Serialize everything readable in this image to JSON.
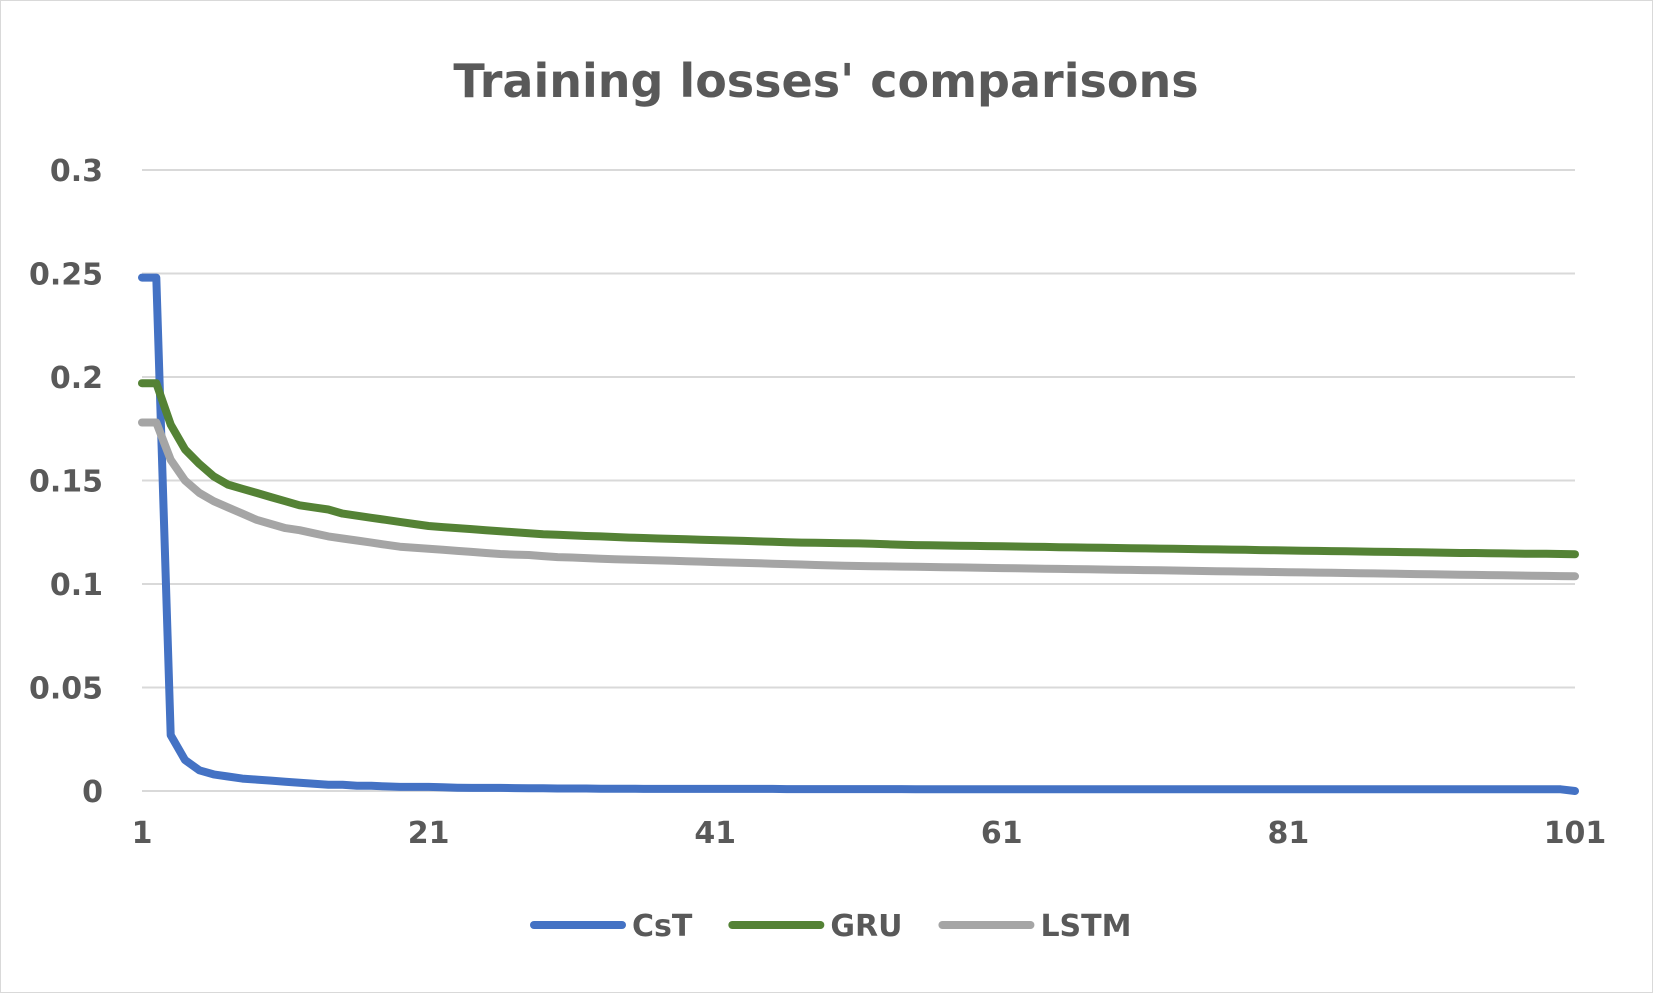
{
  "chart_data": {
    "type": "line",
    "title": "Training losses' comparisons",
    "xlabel": "",
    "ylabel": "",
    "xlim": [
      1,
      101
    ],
    "ylim": [
      0,
      0.3
    ],
    "x_ticks": [
      "1",
      "21",
      "41",
      "61",
      "81",
      "101"
    ],
    "y_ticks": [
      "0",
      "0.05",
      "0.1",
      "0.15",
      "0.2",
      "0.25",
      "0.3"
    ],
    "grid": true,
    "legend_position": "bottom",
    "x": [
      1,
      2,
      3,
      4,
      5,
      6,
      7,
      8,
      9,
      10,
      11,
      12,
      13,
      14,
      15,
      16,
      17,
      18,
      19,
      20,
      21,
      22,
      23,
      24,
      25,
      26,
      27,
      28,
      29,
      30,
      31,
      32,
      33,
      34,
      35,
      36,
      37,
      38,
      39,
      40,
      41,
      42,
      43,
      44,
      45,
      46,
      47,
      48,
      49,
      50,
      51,
      52,
      53,
      54,
      55,
      56,
      57,
      58,
      59,
      60,
      61,
      62,
      63,
      64,
      65,
      66,
      67,
      68,
      69,
      70,
      71,
      72,
      73,
      74,
      75,
      76,
      77,
      78,
      79,
      80,
      81,
      82,
      83,
      84,
      85,
      86,
      87,
      88,
      89,
      90,
      91,
      92,
      93,
      94,
      95,
      96,
      97,
      98,
      99,
      100,
      101
    ],
    "series": [
      {
        "name": "CsT",
        "color": "#4472c4",
        "values": [
          0.248,
          0.248,
          0.027,
          0.015,
          0.01,
          0.008,
          0.007,
          0.006,
          0.0055,
          0.005,
          0.0045,
          0.004,
          0.0035,
          0.003,
          0.003,
          0.0025,
          0.0025,
          0.0022,
          0.002,
          0.002,
          0.002,
          0.0018,
          0.0016,
          0.0015,
          0.0015,
          0.0015,
          0.0014,
          0.0013,
          0.0013,
          0.0012,
          0.0012,
          0.0012,
          0.0011,
          0.0011,
          0.0011,
          0.001,
          0.001,
          0.001,
          0.001,
          0.001,
          0.001,
          0.001,
          0.001,
          0.001,
          0.001,
          0.0009,
          0.0009,
          0.0009,
          0.0009,
          0.0009,
          0.0009,
          0.0009,
          0.0009,
          0.0009,
          0.0008,
          0.0008,
          0.0008,
          0.0008,
          0.0008,
          0.0008,
          0.0008,
          0.0008,
          0.0008,
          0.0008,
          0.0008,
          0.0008,
          0.0008,
          0.0008,
          0.0008,
          0.0008,
          0.0008,
          0.0008,
          0.0008,
          0.0008,
          0.0008,
          0.0008,
          0.0008,
          0.0008,
          0.0008,
          0.0008,
          0.0008,
          0.0008,
          0.0008,
          0.0008,
          0.0008,
          0.0008,
          0.0008,
          0.0008,
          0.0008,
          0.0008,
          0.0008,
          0.0008,
          0.0008,
          0.0008,
          0.0008,
          0.0008,
          0.0008,
          0.0008,
          0.0008,
          0.0008,
          0.0
        ]
      },
      {
        "name": "GRU",
        "color": "#548235",
        "values": [
          0.197,
          0.197,
          0.177,
          0.165,
          0.158,
          0.152,
          0.148,
          0.146,
          0.144,
          0.142,
          0.14,
          0.138,
          0.137,
          0.136,
          0.134,
          0.133,
          0.132,
          0.131,
          0.13,
          0.129,
          0.128,
          0.1275,
          0.127,
          0.1265,
          0.126,
          0.1255,
          0.125,
          0.1245,
          0.124,
          0.1238,
          0.1235,
          0.1232,
          0.123,
          0.1227,
          0.1224,
          0.1222,
          0.122,
          0.1218,
          0.1216,
          0.1214,
          0.1212,
          0.121,
          0.1208,
          0.1206,
          0.1204,
          0.1202,
          0.12,
          0.1199,
          0.1198,
          0.1197,
          0.1196,
          0.1194,
          0.1192,
          0.119,
          0.1188,
          0.1187,
          0.1186,
          0.1185,
          0.1184,
          0.1183,
          0.1182,
          0.1181,
          0.118,
          0.1179,
          0.1178,
          0.1177,
          0.1176,
          0.1175,
          0.1174,
          0.1173,
          0.1172,
          0.1171,
          0.117,
          0.1169,
          0.1168,
          0.1167,
          0.1166,
          0.1165,
          0.1164,
          0.1163,
          0.1162,
          0.1161,
          0.116,
          0.1159,
          0.1158,
          0.1157,
          0.1156,
          0.1155,
          0.1154,
          0.1153,
          0.1152,
          0.1151,
          0.115,
          0.115,
          0.1149,
          0.1148,
          0.1147,
          0.1146,
          0.1146,
          0.1145,
          0.1144
        ]
      },
      {
        "name": "LSTM",
        "color": "#a5a5a5",
        "values": [
          0.178,
          0.178,
          0.16,
          0.15,
          0.144,
          0.14,
          0.137,
          0.134,
          0.131,
          0.129,
          0.127,
          0.126,
          0.1245,
          0.123,
          0.122,
          0.121,
          0.12,
          0.119,
          0.118,
          0.1175,
          0.117,
          0.1165,
          0.116,
          0.1155,
          0.115,
          0.1145,
          0.1142,
          0.114,
          0.1135,
          0.113,
          0.1128,
          0.1125,
          0.1122,
          0.112,
          0.1118,
          0.1116,
          0.1114,
          0.1112,
          0.111,
          0.1108,
          0.1106,
          0.1104,
          0.1102,
          0.11,
          0.1098,
          0.1096,
          0.1094,
          0.1092,
          0.109,
          0.1088,
          0.1087,
          0.1086,
          0.1085,
          0.1084,
          0.1083,
          0.1082,
          0.1081,
          0.108,
          0.1079,
          0.1078,
          0.1077,
          0.1076,
          0.1075,
          0.1074,
          0.1073,
          0.1072,
          0.1071,
          0.107,
          0.1069,
          0.1068,
          0.1067,
          0.1066,
          0.1065,
          0.1064,
          0.1063,
          0.1062,
          0.1061,
          0.106,
          0.1059,
          0.1058,
          0.1057,
          0.1056,
          0.1055,
          0.1054,
          0.1053,
          0.1052,
          0.1051,
          0.105,
          0.1049,
          0.1048,
          0.1047,
          0.1046,
          0.1045,
          0.1044,
          0.1043,
          0.1042,
          0.1041,
          0.104,
          0.1039,
          0.1038,
          0.1037
        ]
      }
    ]
  }
}
